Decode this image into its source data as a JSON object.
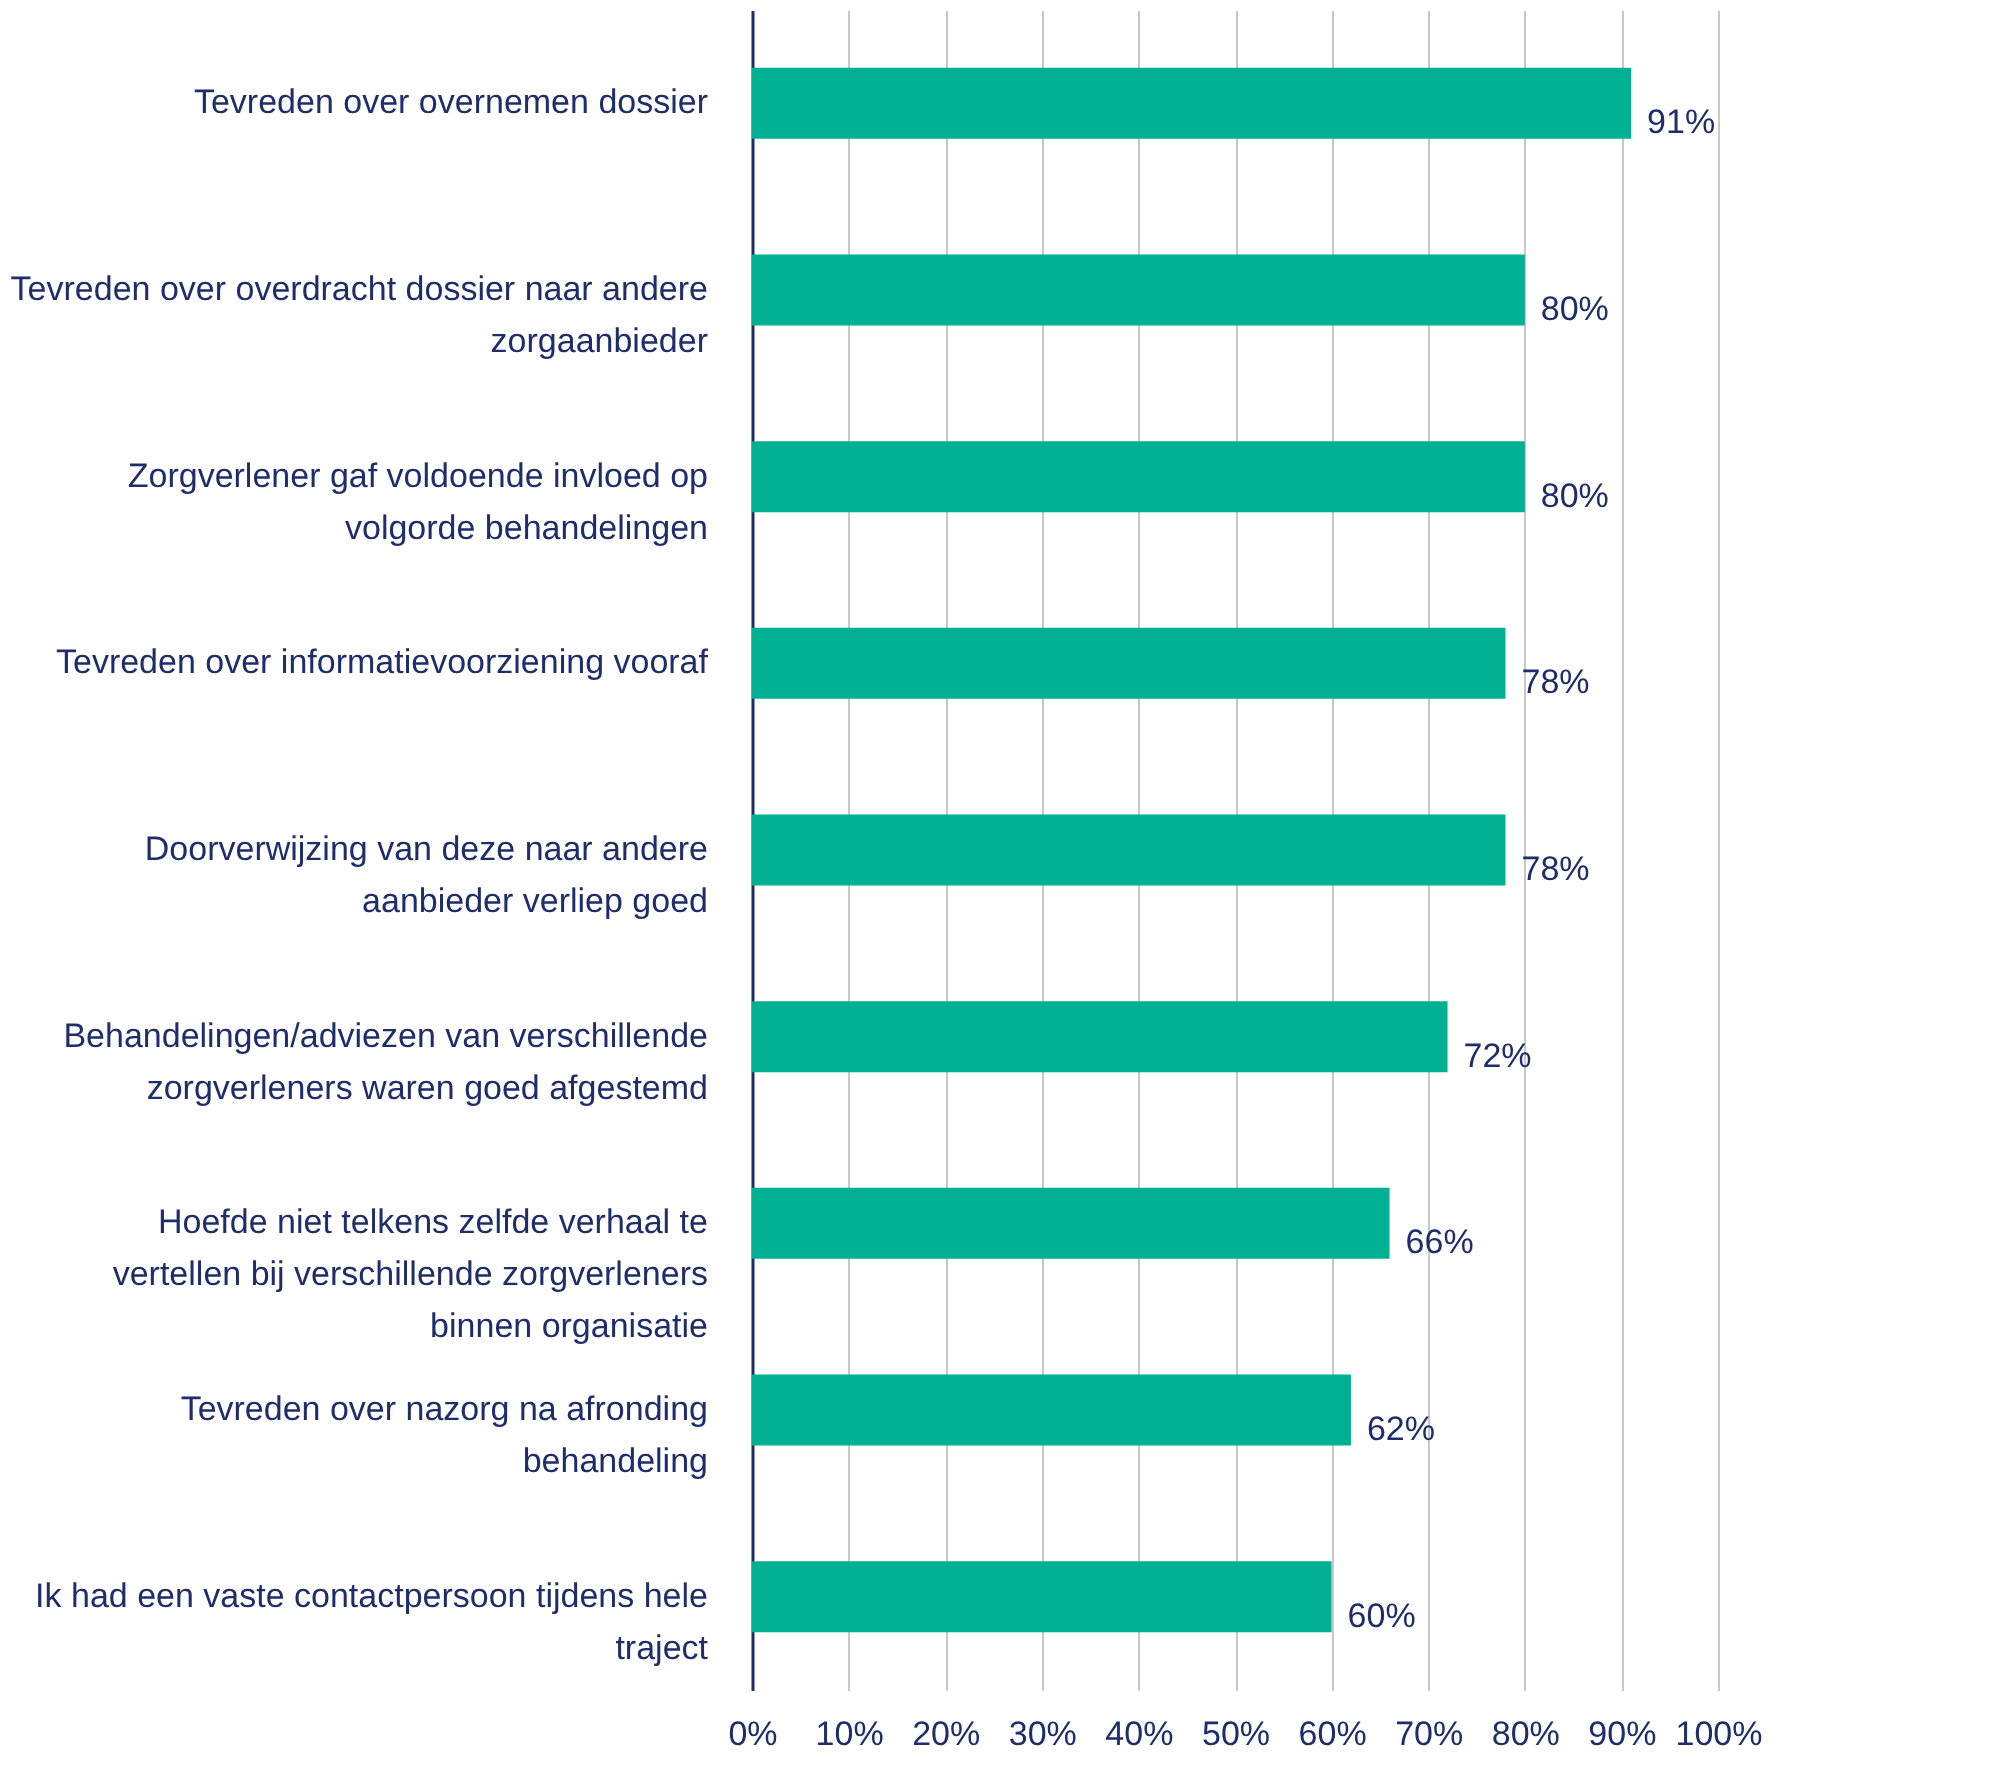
{
  "chart_data": {
    "type": "bar",
    "orientation": "horizontal",
    "categories": [
      "Tevreden over overnemen dossier",
      "Tevreden over overdracht dossier naar andere zorgaanbieder",
      "Zorgverlener gaf voldoende invloed op volgorde behandelingen",
      "Tevreden over informatievoorziening vooraf",
      "Doorverwijzing van deze naar andere aanbieder verliep goed",
      "Behandelingen/adviezen van verschillende zorgverleners waren goed afgestemd",
      "Hoefde niet telkens zelfde verhaal te vertellen bij verschillende zorgverleners binnen organisatie",
      "Tevreden over nazorg na afronding behandeling",
      "Ik had een vaste contactpersoon tijdens hele traject"
    ],
    "values": [
      91,
      80,
      80,
      78,
      78,
      72,
      66,
      62,
      60
    ],
    "value_labels": [
      "91%",
      "80%",
      "80%",
      "78%",
      "78%",
      "72%",
      "66%",
      "62%",
      "60%"
    ],
    "color": "#00b092",
    "xlim": [
      0,
      100
    ],
    "xticks": [
      {
        "value": 0,
        "label": "0%"
      },
      {
        "value": 10,
        "label": "10%"
      },
      {
        "value": 20,
        "label": "20%"
      },
      {
        "value": 30,
        "label": "30%"
      },
      {
        "value": 40,
        "label": "40%"
      },
      {
        "value": 50,
        "label": "50%"
      },
      {
        "value": 60,
        "label": "60%"
      },
      {
        "value": 70,
        "label": "70%"
      },
      {
        "value": 80,
        "label": "80%"
      },
      {
        "value": 90,
        "label": "90%"
      },
      {
        "value": 100,
        "label": "100%"
      }
    ],
    "grid": "x"
  }
}
